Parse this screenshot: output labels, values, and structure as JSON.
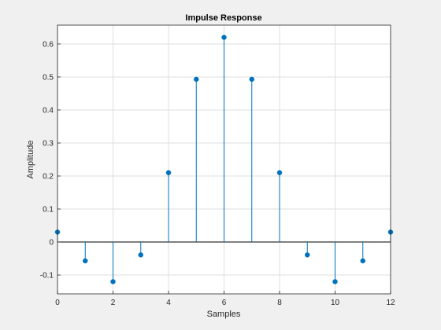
{
  "chart_data": {
    "type": "stem",
    "title": "Impulse Response",
    "xlabel": "Samples",
    "ylabel": "Amplitude",
    "x": [
      0,
      1,
      2,
      3,
      4,
      5,
      6,
      7,
      8,
      9,
      10,
      11,
      12
    ],
    "y": [
      0.03,
      -0.057,
      -0.12,
      -0.039,
      0.21,
      0.493,
      0.62,
      0.493,
      0.21,
      -0.039,
      -0.12,
      -0.057,
      0.03
    ],
    "xlim": [
      0,
      12
    ],
    "ylim": [
      -0.157,
      0.657
    ],
    "xticks": [
      "0",
      "2",
      "4",
      "6",
      "8",
      "10",
      "12"
    ],
    "yticks": [
      "-0.1",
      "0",
      "0.1",
      "0.2",
      "0.3",
      "0.4",
      "0.5",
      "0.6"
    ],
    "grid": true,
    "colors": {
      "stem": "#0072bd",
      "baseline": "#000000",
      "grid": "#dfdfdf",
      "background": "#ffffff",
      "figure": "#f0f0f0"
    }
  }
}
